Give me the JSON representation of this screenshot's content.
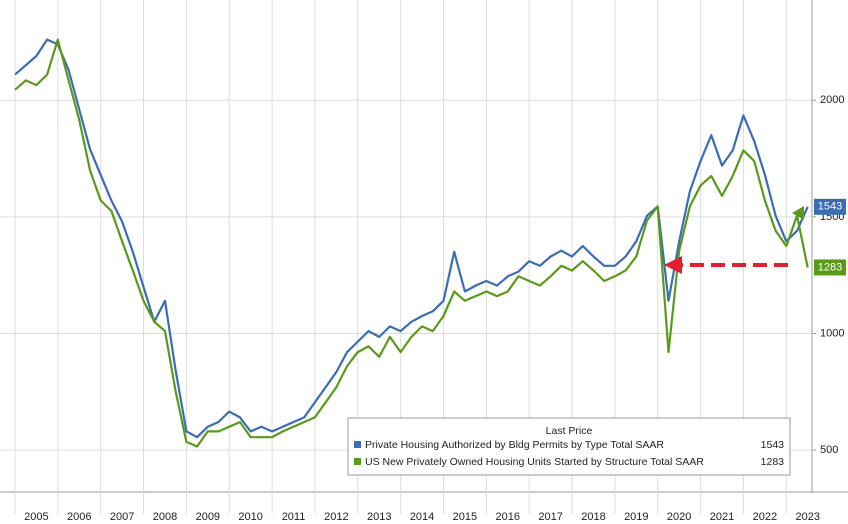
{
  "chart_data": {
    "type": "line",
    "legend_title": "Last Price",
    "x": [
      2005,
      2005.25,
      2005.5,
      2005.75,
      2006,
      2006.25,
      2006.5,
      2006.75,
      2007,
      2007.25,
      2007.5,
      2007.75,
      2008,
      2008.25,
      2008.5,
      2008.75,
      2009,
      2009.25,
      2009.5,
      2009.75,
      2010,
      2010.25,
      2010.5,
      2010.75,
      2011,
      2011.25,
      2011.5,
      2011.75,
      2012,
      2012.25,
      2012.5,
      2012.75,
      2013,
      2013.25,
      2013.5,
      2013.75,
      2014,
      2014.25,
      2014.5,
      2014.75,
      2015,
      2015.25,
      2015.5,
      2015.75,
      2016,
      2016.25,
      2016.5,
      2016.75,
      2017,
      2017.25,
      2017.5,
      2017.75,
      2018,
      2018.25,
      2018.5,
      2018.75,
      2019,
      2019.25,
      2019.5,
      2019.75,
      2020,
      2020.25,
      2020.5,
      2020.75,
      2021,
      2021.25,
      2021.5,
      2021.75,
      2022,
      2022.25,
      2022.5,
      2022.75,
      2023,
      2023.25,
      2023.5
    ],
    "series": [
      {
        "name": "Private Housing Authorized by Bldg Permits by Type Total SAAR",
        "color": "#3a6db5",
        "values": [
          2110,
          2150,
          2190,
          2260,
          2240,
          2130,
          1960,
          1790,
          1680,
          1570,
          1480,
          1350,
          1200,
          1050,
          1140,
          840,
          580,
          555,
          600,
          620,
          665,
          640,
          580,
          600,
          580,
          600,
          620,
          640,
          705,
          770,
          835,
          920,
          965,
          1010,
          985,
          1030,
          1010,
          1050,
          1075,
          1095,
          1140,
          1350,
          1180,
          1205,
          1225,
          1205,
          1245,
          1265,
          1310,
          1290,
          1330,
          1355,
          1330,
          1375,
          1330,
          1290,
          1290,
          1330,
          1395,
          1505,
          1545,
          1140,
          1395,
          1610,
          1740,
          1850,
          1720,
          1785,
          1935,
          1825,
          1680,
          1505,
          1395,
          1440,
          1543
        ]
      },
      {
        "name": "US New Privately Owned Housing Units Started by Structure Total SAAR",
        "color": "#5a9a1a",
        "values": [
          2045,
          2085,
          2065,
          2110,
          2260,
          2085,
          1915,
          1700,
          1570,
          1525,
          1395,
          1270,
          1140,
          1050,
          1010,
          750,
          535,
          515,
          580,
          580,
          600,
          620,
          555,
          555,
          555,
          580,
          600,
          620,
          640,
          705,
          770,
          860,
          920,
          945,
          900,
          985,
          920,
          985,
          1030,
          1010,
          1075,
          1180,
          1140,
          1160,
          1180,
          1160,
          1180,
          1245,
          1225,
          1205,
          1245,
          1290,
          1270,
          1310,
          1270,
          1225,
          1245,
          1270,
          1330,
          1485,
          1545,
          920,
          1355,
          1545,
          1635,
          1675,
          1590,
          1675,
          1785,
          1740,
          1570,
          1440,
          1375,
          1505,
          1283
        ]
      }
    ],
    "xlim": [
      2004.65,
      2023.6
    ],
    "xticks": [
      {
        "value": 2005.5,
        "label": "2005"
      },
      {
        "value": 2006.5,
        "label": "2006"
      },
      {
        "value": 2007.5,
        "label": "2007"
      },
      {
        "value": 2008.5,
        "label": "2008"
      },
      {
        "value": 2009.5,
        "label": "2009"
      },
      {
        "value": 2010.5,
        "label": "2010"
      },
      {
        "value": 2011.5,
        "label": "2011"
      },
      {
        "value": 2012.5,
        "label": "2012"
      },
      {
        "value": 2013.5,
        "label": "2013"
      },
      {
        "value": 2014.5,
        "label": "2014"
      },
      {
        "value": 2015.5,
        "label": "2015"
      },
      {
        "value": 2016.5,
        "label": "2016"
      },
      {
        "value": 2017.5,
        "label": "2017"
      },
      {
        "value": 2018.5,
        "label": "2018"
      },
      {
        "value": 2019.5,
        "label": "2019"
      },
      {
        "value": 2020.5,
        "label": "2020"
      },
      {
        "value": 2021.5,
        "label": "2021"
      },
      {
        "value": 2022.5,
        "label": "2022"
      },
      {
        "value": 2023.5,
        "label": "2023"
      }
    ],
    "ylim": [
      320,
      2430
    ],
    "yticks": [
      500,
      1000,
      1500,
      2000
    ],
    "grid": true
  }
}
